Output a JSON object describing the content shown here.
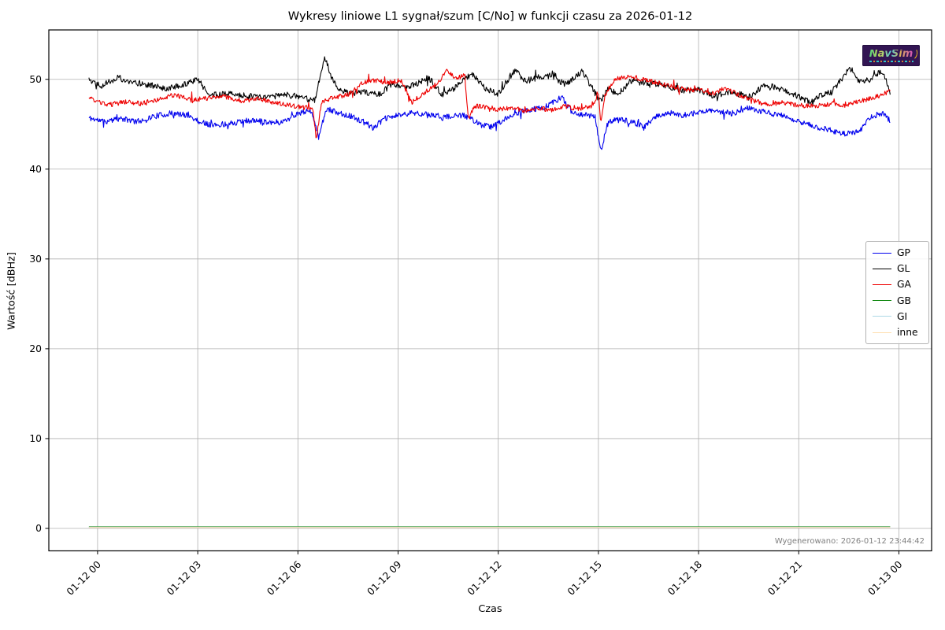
{
  "figure": {
    "title": "Wykresy liniowe L1 sygnał/szum [C/No] w funkcji czasu za 2026-01-12",
    "generated_note": "Wygenerowano: 2026-01-12 23:44:42",
    "watermark_text": "NavSim"
  },
  "chart_data": {
    "type": "line",
    "title": "Wykresy liniowe L1 sygnał/szum [C/No] w funkcji czasu za 2026-01-12",
    "xlabel": "Czas",
    "ylabel": "Wartość [dBHz]",
    "grid": true,
    "legend_position": "right",
    "xlim_hours": [
      -1.46,
      24.98
    ],
    "ylim": [
      -2.5,
      55.5
    ],
    "y_ticks": [
      0,
      10,
      20,
      30,
      40,
      50
    ],
    "x_ticks": [
      {
        "hour": 0,
        "label": "01-12 00"
      },
      {
        "hour": 3,
        "label": "01-12 03"
      },
      {
        "hour": 6,
        "label": "01-12 06"
      },
      {
        "hour": 9,
        "label": "01-12 09"
      },
      {
        "hour": 12,
        "label": "01-12 12"
      },
      {
        "hour": 15,
        "label": "01-12 15"
      },
      {
        "hour": 18,
        "label": "01-12 18"
      },
      {
        "hour": 21,
        "label": "01-12 21"
      },
      {
        "hour": 24,
        "label": "01-13 00"
      }
    ],
    "sample_hours": 0.02,
    "series": [
      {
        "name": "GP",
        "color": "#0000ee",
        "noise": 0.32,
        "seed": 11,
        "anchors": [
          [
            -0.26,
            45.7
          ],
          [
            0.2,
            45.3
          ],
          [
            0.7,
            45.6
          ],
          [
            1.2,
            45.3
          ],
          [
            1.7,
            45.9
          ],
          [
            2.2,
            46.2
          ],
          [
            2.7,
            46.0
          ],
          [
            3.1,
            45.2
          ],
          [
            3.5,
            44.9
          ],
          [
            4.0,
            45.1
          ],
          [
            4.5,
            45.4
          ],
          [
            5.0,
            45.3
          ],
          [
            5.5,
            45.2
          ],
          [
            6.0,
            46.2
          ],
          [
            6.4,
            46.5
          ],
          [
            6.62,
            43.5
          ],
          [
            6.85,
            46.7
          ],
          [
            7.1,
            46.4
          ],
          [
            7.5,
            46.0
          ],
          [
            8.0,
            45.2
          ],
          [
            8.25,
            44.6
          ],
          [
            8.6,
            45.6
          ],
          [
            9.0,
            46.0
          ],
          [
            9.5,
            46.3
          ],
          [
            10.0,
            46.0
          ],
          [
            10.5,
            45.8
          ],
          [
            11.0,
            46.0
          ],
          [
            11.5,
            44.9
          ],
          [
            11.8,
            44.7
          ],
          [
            12.2,
            45.6
          ],
          [
            12.6,
            46.3
          ],
          [
            13.0,
            46.6
          ],
          [
            13.4,
            46.9
          ],
          [
            13.9,
            48.0
          ],
          [
            14.2,
            46.4
          ],
          [
            14.5,
            46.1
          ],
          [
            14.9,
            45.9
          ],
          [
            15.07,
            42.0
          ],
          [
            15.3,
            45.3
          ],
          [
            15.7,
            45.5
          ],
          [
            16.1,
            45.1
          ],
          [
            16.4,
            44.8
          ],
          [
            16.7,
            45.8
          ],
          [
            17.1,
            46.3
          ],
          [
            17.5,
            46.0
          ],
          [
            18.0,
            46.3
          ],
          [
            18.5,
            46.5
          ],
          [
            19.0,
            46.2
          ],
          [
            19.5,
            46.8
          ],
          [
            20.0,
            46.3
          ],
          [
            20.5,
            46.0
          ],
          [
            21.0,
            45.3
          ],
          [
            21.5,
            44.7
          ],
          [
            22.0,
            44.3
          ],
          [
            22.4,
            43.9
          ],
          [
            22.8,
            44.2
          ],
          [
            23.2,
            45.9
          ],
          [
            23.5,
            46.2
          ],
          [
            23.74,
            45.4
          ]
        ]
      },
      {
        "name": "GL",
        "color": "#000000",
        "noise": 0.34,
        "seed": 22,
        "anchors": [
          [
            -0.26,
            50.1
          ],
          [
            0.1,
            49.3
          ],
          [
            0.6,
            50.2
          ],
          [
            1.0,
            49.7
          ],
          [
            1.5,
            49.4
          ],
          [
            2.0,
            49.0
          ],
          [
            2.5,
            49.3
          ],
          [
            3.0,
            50.0
          ],
          [
            3.4,
            48.2
          ],
          [
            4.0,
            48.5
          ],
          [
            4.5,
            48.1
          ],
          [
            5.0,
            48.0
          ],
          [
            5.5,
            48.3
          ],
          [
            6.0,
            48.1
          ],
          [
            6.5,
            47.6
          ],
          [
            6.8,
            52.6
          ],
          [
            7.0,
            50.3
          ],
          [
            7.2,
            48.8
          ],
          [
            7.6,
            48.4
          ],
          [
            8.0,
            48.6
          ],
          [
            8.4,
            48.3
          ],
          [
            8.8,
            49.4
          ],
          [
            9.2,
            49.0
          ],
          [
            9.6,
            49.6
          ],
          [
            9.9,
            50.3
          ],
          [
            10.3,
            48.3
          ],
          [
            10.6,
            48.8
          ],
          [
            11.2,
            50.6
          ],
          [
            11.6,
            49.0
          ],
          [
            12.0,
            48.4
          ],
          [
            12.5,
            51.0
          ],
          [
            12.8,
            49.8
          ],
          [
            13.2,
            50.2
          ],
          [
            13.6,
            50.4
          ],
          [
            14.0,
            49.4
          ],
          [
            14.5,
            50.9
          ],
          [
            15.05,
            47.6
          ],
          [
            15.3,
            48.9
          ],
          [
            15.6,
            48.4
          ],
          [
            16.0,
            49.9
          ],
          [
            16.5,
            49.6
          ],
          [
            17.0,
            49.3
          ],
          [
            17.5,
            48.8
          ],
          [
            18.0,
            48.8
          ],
          [
            18.5,
            48.1
          ],
          [
            19.0,
            48.6
          ],
          [
            19.5,
            48.0
          ],
          [
            20.0,
            49.4
          ],
          [
            20.4,
            49.0
          ],
          [
            20.8,
            48.4
          ],
          [
            21.3,
            47.5
          ],
          [
            21.7,
            48.3
          ],
          [
            22.0,
            48.6
          ],
          [
            22.5,
            51.1
          ],
          [
            22.8,
            49.8
          ],
          [
            23.1,
            49.9
          ],
          [
            23.45,
            50.9
          ],
          [
            23.6,
            50.3
          ],
          [
            23.74,
            48.2
          ]
        ]
      },
      {
        "name": "GA",
        "color": "#ee0000",
        "noise": 0.26,
        "seed": 33,
        "anchors": [
          [
            -0.26,
            47.9
          ],
          [
            0.3,
            47.1
          ],
          [
            0.8,
            47.5
          ],
          [
            1.3,
            47.3
          ],
          [
            1.8,
            47.7
          ],
          [
            2.3,
            48.3
          ],
          [
            2.8,
            47.7
          ],
          [
            3.3,
            47.9
          ],
          [
            3.8,
            48.1
          ],
          [
            4.3,
            47.6
          ],
          [
            4.8,
            47.8
          ],
          [
            5.3,
            47.4
          ],
          [
            5.8,
            47.1
          ],
          [
            6.2,
            46.8
          ],
          [
            6.45,
            46.9
          ],
          [
            6.55,
            43.3
          ],
          [
            6.7,
            47.4
          ],
          [
            7.0,
            47.9
          ],
          [
            7.5,
            48.3
          ],
          [
            7.9,
            49.5
          ],
          [
            8.3,
            49.9
          ],
          [
            8.7,
            49.6
          ],
          [
            9.1,
            49.9
          ],
          [
            9.4,
            47.4
          ],
          [
            9.9,
            48.8
          ],
          [
            10.2,
            49.6
          ],
          [
            10.45,
            50.9
          ],
          [
            10.7,
            50.2
          ],
          [
            11.0,
            50.4
          ],
          [
            11.1,
            45.6
          ],
          [
            11.3,
            47.0
          ],
          [
            11.7,
            46.9
          ],
          [
            12.0,
            46.6
          ],
          [
            12.4,
            46.9
          ],
          [
            12.8,
            46.5
          ],
          [
            13.2,
            46.8
          ],
          [
            13.6,
            46.6
          ],
          [
            14.0,
            47.0
          ],
          [
            14.4,
            46.7
          ],
          [
            14.8,
            47.0
          ],
          [
            15.0,
            48.4
          ],
          [
            15.07,
            44.9
          ],
          [
            15.2,
            48.3
          ],
          [
            15.5,
            50.1
          ],
          [
            16.0,
            50.3
          ],
          [
            16.4,
            49.9
          ],
          [
            16.8,
            49.6
          ],
          [
            17.2,
            49.2
          ],
          [
            17.6,
            48.9
          ],
          [
            18.0,
            48.8
          ],
          [
            18.4,
            48.4
          ],
          [
            18.8,
            49.0
          ],
          [
            19.2,
            48.3
          ],
          [
            19.6,
            47.7
          ],
          [
            20.0,
            47.2
          ],
          [
            20.5,
            47.4
          ],
          [
            21.0,
            47.1
          ],
          [
            21.5,
            47.0
          ],
          [
            22.0,
            47.3
          ],
          [
            22.4,
            47.1
          ],
          [
            22.8,
            47.5
          ],
          [
            23.2,
            47.9
          ],
          [
            23.5,
            48.3
          ],
          [
            23.74,
            48.7
          ]
        ]
      },
      {
        "name": "GB",
        "color": "#008000",
        "noise": 0,
        "seed": 44,
        "anchors": [
          [
            -0.26,
            0.18
          ],
          [
            23.74,
            0.18
          ]
        ]
      },
      {
        "name": "GI",
        "color": "#add8e6",
        "noise": 0,
        "seed": 55,
        "anchors": [
          [
            -0.26,
            0.14
          ],
          [
            23.74,
            0.14
          ]
        ]
      },
      {
        "name": "inne",
        "color": "#ffdead",
        "noise": 0,
        "seed": 66,
        "anchors": [
          [
            -0.26,
            0.1
          ],
          [
            23.74,
            0.1
          ]
        ]
      }
    ]
  }
}
